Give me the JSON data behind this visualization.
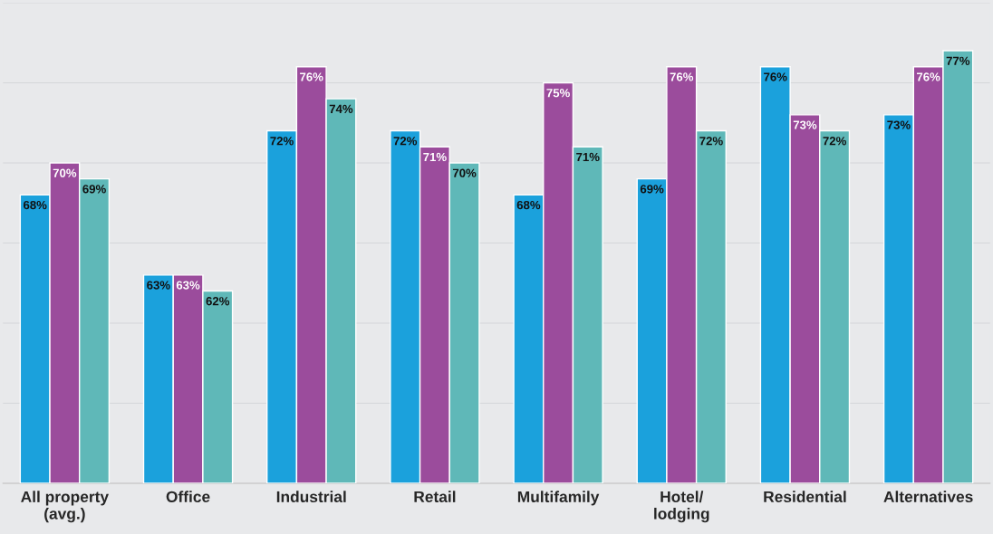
{
  "chart_data": {
    "type": "bar",
    "categories": [
      "All property\n(avg.)",
      "Office",
      "Industrial",
      "Retail",
      "Multifamily",
      "Hotel/\nlodging",
      "Residential",
      "Alternatives"
    ],
    "series": [
      {
        "color": "#1ba1dc",
        "values": [
          68,
          63,
          72,
          72,
          68,
          69,
          76,
          73
        ],
        "value_labels": [
          "68%",
          "63%",
          "72%",
          "72%",
          "68%",
          "69%",
          "76%",
          "73%"
        ]
      },
      {
        "color": "#9b4c9c",
        "values": [
          70,
          63,
          76,
          71,
          75,
          76,
          73,
          76
        ],
        "value_labels": [
          "70%",
          "63%",
          "76%",
          "71%",
          "75%",
          "76%",
          "73%",
          "76%"
        ]
      },
      {
        "color": "#5fb8b8",
        "values": [
          69,
          62,
          74,
          70,
          71,
          72,
          72,
          77
        ],
        "value_labels": [
          "69%",
          "62%",
          "74%",
          "70%",
          "71%",
          "72%",
          "72%",
          "77%"
        ]
      }
    ],
    "ylim": [
      50,
      80
    ],
    "yticks": [
      {
        "value": 55,
        "label": null
      },
      {
        "value": 60,
        "label": null
      },
      {
        "value": 65,
        "label": null
      },
      {
        "value": 70,
        "label": null
      },
      {
        "value": 75,
        "label": null
      },
      {
        "value": 80,
        "label": null
      }
    ],
    "grid": "y",
    "tick_labels": "x",
    "legend": false
  }
}
